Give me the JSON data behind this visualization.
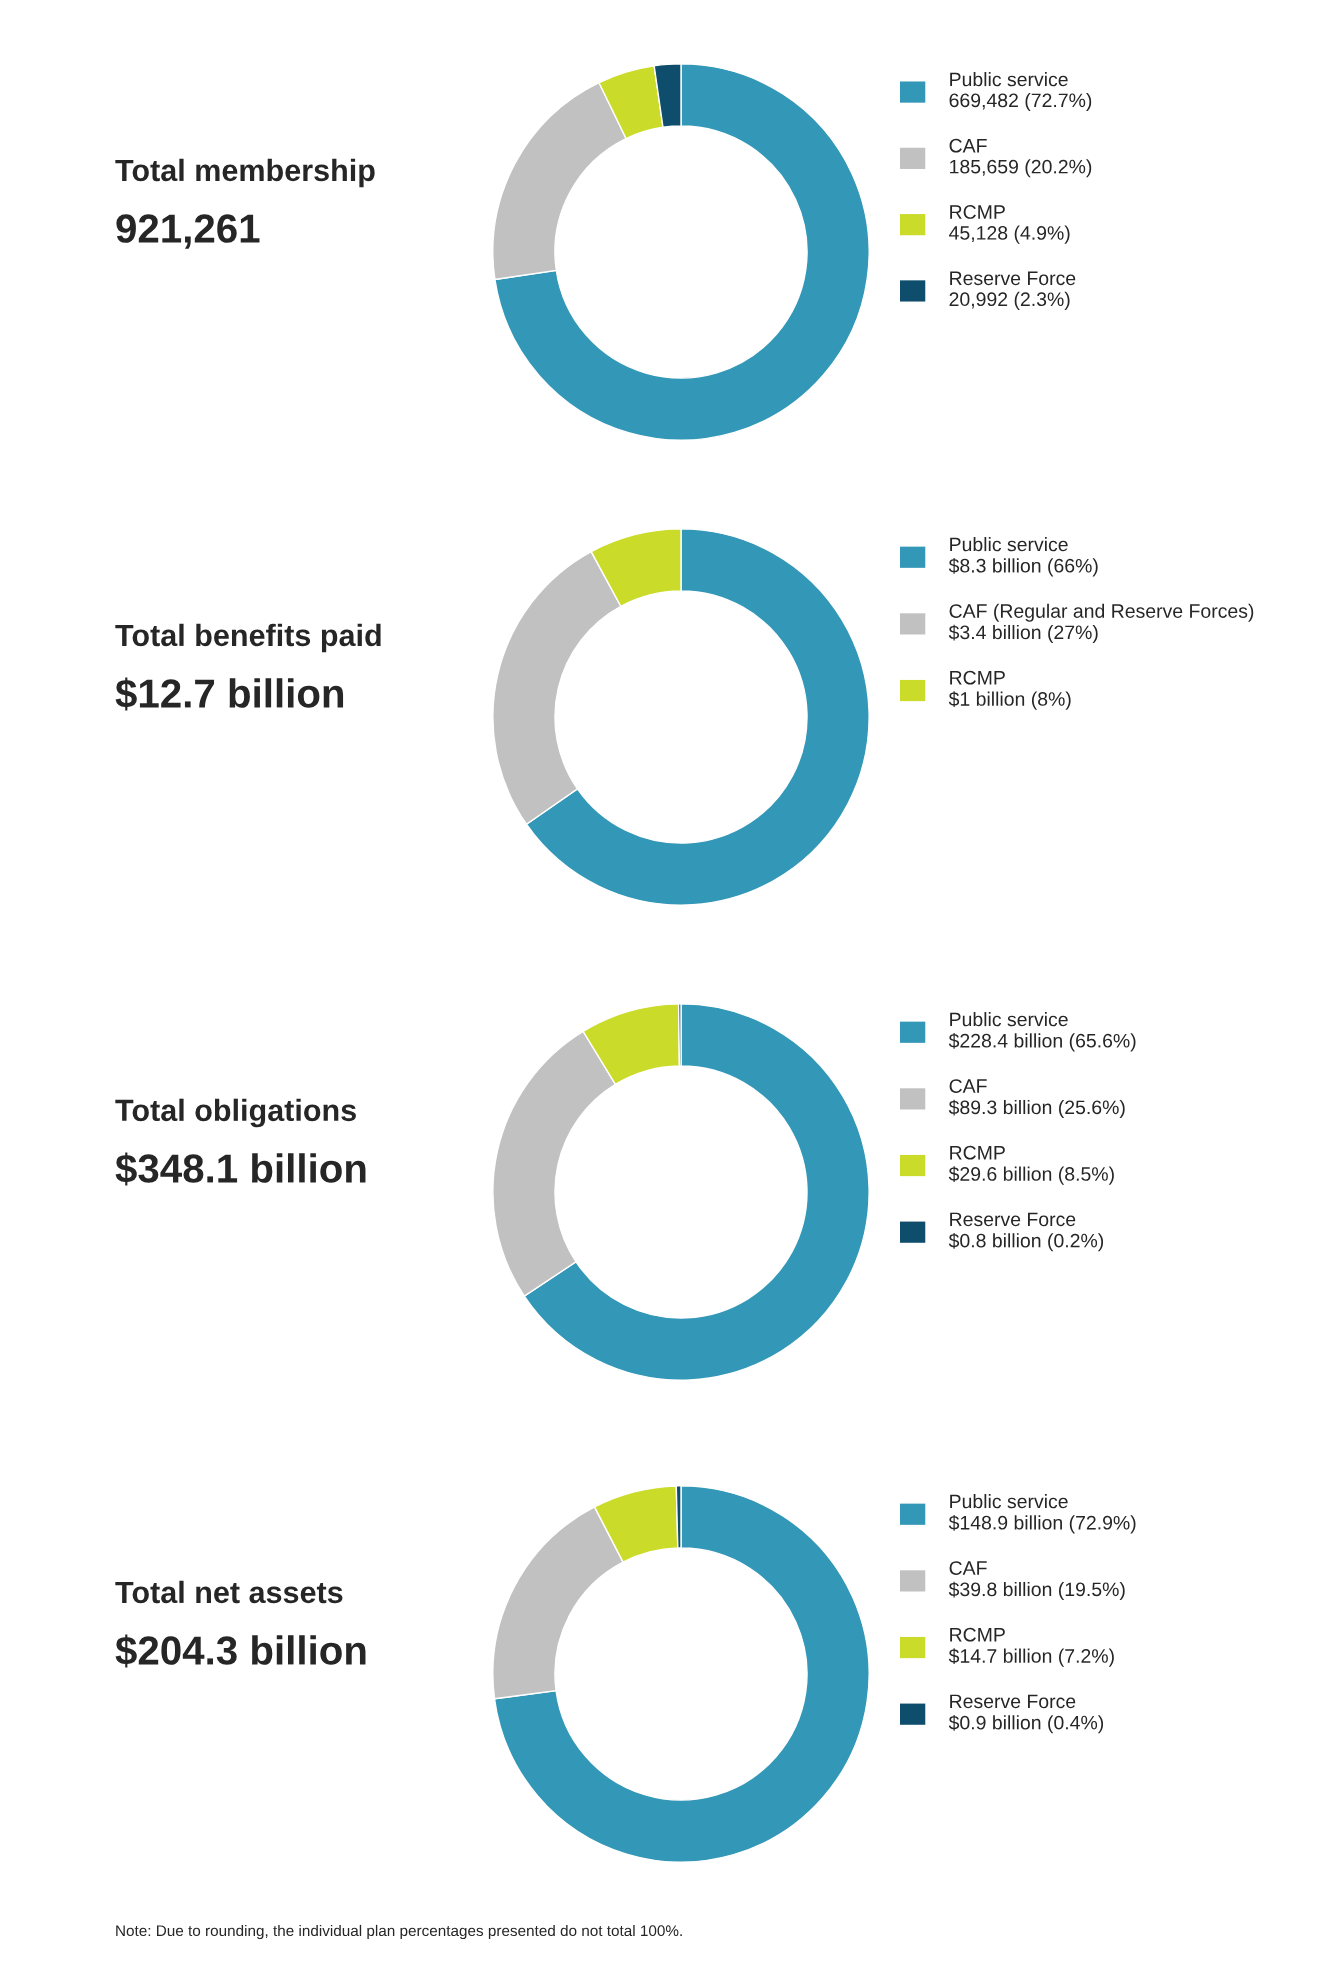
{
  "chart_data": [
    {
      "type": "donut",
      "title": "Total membership",
      "subtitle": "921,261",
      "legend": "right",
      "categories": [
        "Public service",
        "CAF",
        "RCMP",
        "Reserve Force"
      ],
      "values": [
        669482,
        185659,
        45128,
        20992
      ],
      "value_labels": [
        "669,482 (72.7%)",
        "185,659 (20.2%)",
        "45,128 (4.9%)",
        "20,992 (2.3%)"
      ],
      "colors": [
        "#3397b7",
        "#c1c1c1",
        "#cbdb2a",
        "#0e4d6b"
      ]
    },
    {
      "type": "donut",
      "title": "Total benefits paid",
      "subtitle": "$12.7 billion",
      "legend": "right",
      "categories": [
        "Public service",
        "CAF (Regular and Reserve Forces)",
        "RCMP"
      ],
      "values": [
        66,
        27,
        8
      ],
      "value_labels": [
        "$8.3 billion (66%)",
        "$3.4 billion (27%)",
        "$1 billion (8%)"
      ],
      "colors": [
        "#3397b7",
        "#c1c1c1",
        "#cbdb2a"
      ]
    },
    {
      "type": "donut",
      "title": "Total obligations",
      "subtitle": "$348.1 billion",
      "legend": "right",
      "categories": [
        "Public service",
        "CAF",
        "RCMP",
        "Reserve Force"
      ],
      "values": [
        65.6,
        25.6,
        8.5,
        0.2
      ],
      "value_labels": [
        "$228.4 billion (65.6%)",
        "$89.3 billion (25.6%)",
        "$29.6 billion (8.5%)",
        "$0.8 billion (0.2%)"
      ],
      "colors": [
        "#3397b7",
        "#c1c1c1",
        "#cbdb2a",
        "#0e4d6b"
      ]
    },
    {
      "type": "donut",
      "title": "Total net assets",
      "subtitle": "$204.3 billion",
      "legend": "right",
      "categories": [
        "Public service",
        "CAF",
        "RCMP",
        "Reserve Force"
      ],
      "values": [
        72.9,
        19.5,
        7.2,
        0.4
      ],
      "value_labels": [
        "$148.9 billion (72.9%)",
        "$39.8 billion (19.5%)",
        "$14.7 billion (7.2%)",
        "$0.9 billion (0.4%)"
      ],
      "colors": [
        "#3397b7",
        "#c1c1c1",
        "#cbdb2a",
        "#0e4d6b"
      ],
      "annotations": [
        "Note: Due to rounding, the individual plan percentages presented do not total 100%."
      ]
    }
  ]
}
